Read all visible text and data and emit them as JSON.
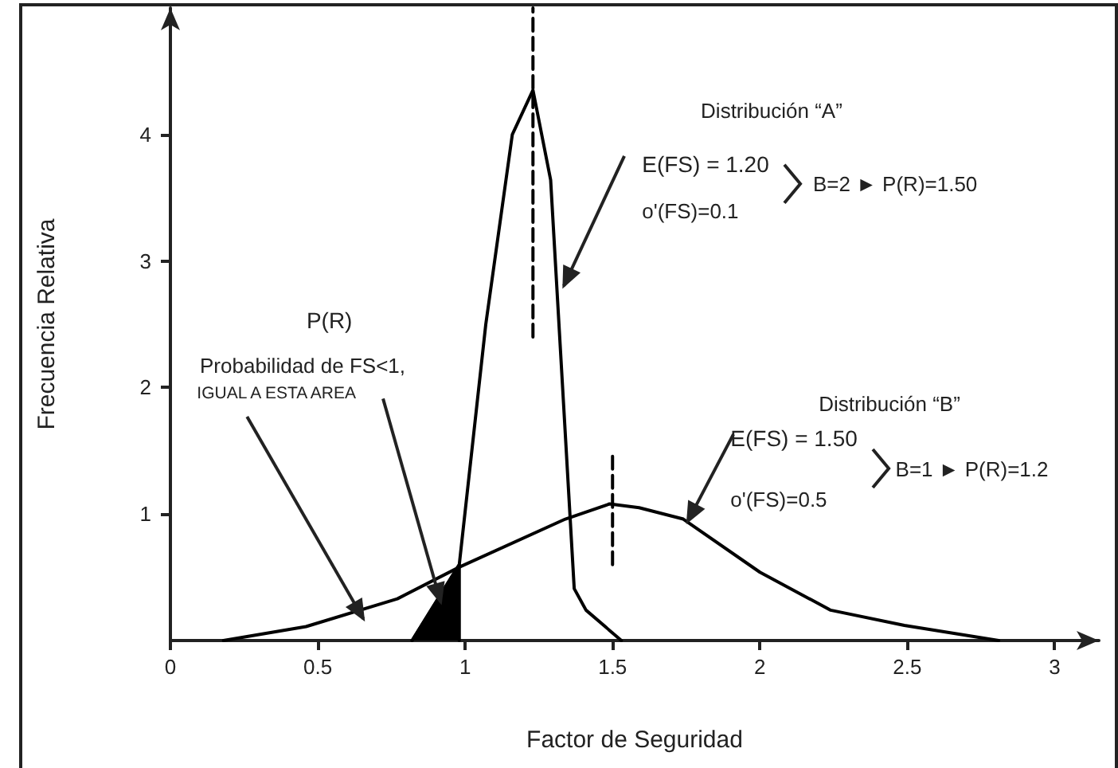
{
  "chart_data": {
    "type": "line",
    "xlabel": "Factor de Seguridad",
    "ylabel": "Frecuencia Relativa",
    "xlim": [
      0,
      3.15
    ],
    "xticks": [
      0,
      0.5,
      1,
      1.5,
      2,
      2.5,
      3
    ],
    "ylim": [
      0,
      5
    ],
    "yticks": [
      1,
      2,
      3,
      4
    ],
    "marker": "none",
    "series": [
      {
        "color": "#000000",
        "x": [
          0.82,
          0.98,
          1.07,
          1.13,
          1.16,
          1.23,
          1.29,
          1.37,
          1.41,
          1.53
        ],
        "values": [
          0,
          0.6,
          2.5,
          3.5,
          4.0,
          4.35,
          3.64,
          0.41,
          0.24,
          0
        ]
      },
      {
        "color": "#000000",
        "x": [
          0.18,
          0.46,
          0.77,
          0.98,
          1.34,
          1.49,
          1.59,
          1.74,
          2.0,
          2.24,
          2.49,
          2.81
        ],
        "values": [
          0,
          0.11,
          0.33,
          0.58,
          0.96,
          1.08,
          1.05,
          0.96,
          0.54,
          0.24,
          0.12,
          0
        ]
      },
      {
        "type": "area",
        "color": "#000000",
        "x": [
          0.82,
          0.98,
          0.98
        ],
        "values": [
          0,
          0.6,
          0
        ]
      },
      {
        "color": "#000000",
        "line_style": "dashed",
        "x": [
          1.23,
          1.23
        ],
        "values": [
          2.4,
          5
        ]
      },
      {
        "color": "#000000",
        "line_style": "dashed",
        "x": [
          1.5,
          1.5
        ],
        "values": [
          0.6,
          1.5
        ]
      }
    ],
    "annotations": [
      "Distribución “A”",
      {
        "text": "E(FS) = 1.20",
        "x": 1.33,
        "y": 2.78
      },
      "o'(FS)=0.1",
      "B=2 ► P(R)=1.50",
      "Distribución “B”",
      {
        "text": "E(FS) = 1.50",
        "x": 1.75,
        "y": 0.92
      },
      "o'(FS)=0.5",
      "B=1 ► P(R)=1.2",
      "P(R)",
      {
        "text": "Probabilidad de FS<1,",
        "x": 0.92,
        "y": 0.28
      },
      "IGUAL A ESTA AREA"
    ]
  }
}
